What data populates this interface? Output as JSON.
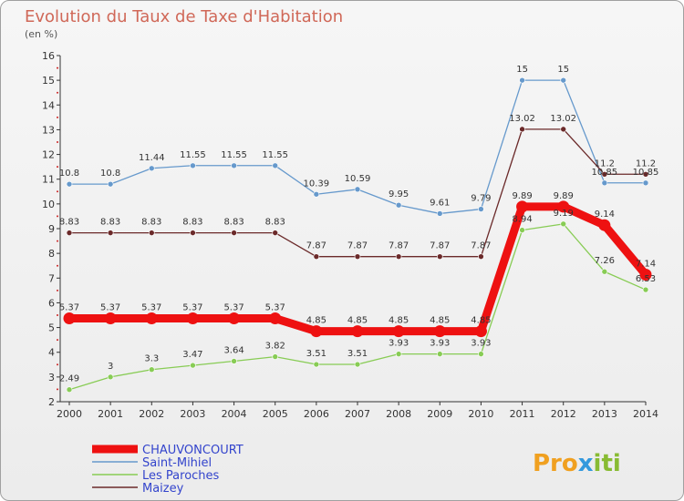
{
  "chart_data": {
    "type": "line",
    "title": "Evolution du Taux de Taxe d'Habitation",
    "subtitle": "(en %)",
    "x": [
      "2000",
      "2001",
      "2002",
      "2003",
      "2004",
      "2005",
      "2006",
      "2007",
      "2008",
      "2009",
      "2010",
      "2011",
      "2012",
      "2013",
      "2014"
    ],
    "ylim": [
      2,
      16
    ],
    "yticks": [
      "2",
      "3",
      "4",
      "5",
      "6",
      "7",
      "8",
      "9",
      "10",
      "11",
      "12",
      "13",
      "14",
      "15",
      "16"
    ],
    "grid": false,
    "legend_position": "bottom-left",
    "series": [
      {
        "name": "CHAUVONCOURT",
        "color": "#ee1111",
        "values": [
          5.37,
          5.37,
          5.37,
          5.37,
          5.37,
          5.37,
          4.85,
          4.85,
          4.85,
          4.85,
          4.85,
          9.89,
          9.89,
          9.14,
          7.14
        ]
      },
      {
        "name": "Saint-Mihiel",
        "color": "#6699cc",
        "values": [
          10.8,
          10.8,
          11.44,
          11.55,
          11.55,
          11.55,
          10.39,
          10.59,
          9.95,
          9.61,
          9.79,
          15,
          15,
          10.85,
          10.85
        ]
      },
      {
        "name": "Les Paroches",
        "color": "#88cc55",
        "values": [
          2.49,
          3,
          3.3,
          3.47,
          3.64,
          3.82,
          3.51,
          3.51,
          3.93,
          3.93,
          3.93,
          8.94,
          9.19,
          7.26,
          6.53
        ]
      },
      {
        "name": "Maizey",
        "color": "#6b2a2a",
        "values": [
          8.83,
          8.83,
          8.83,
          8.83,
          8.83,
          8.83,
          7.87,
          7.87,
          7.87,
          7.87,
          7.87,
          13.02,
          13.02,
          11.2,
          11.2
        ]
      }
    ],
    "labels": [
      [
        "5.37",
        "5.37",
        "5.37",
        "5.37",
        "5.37",
        "5.37",
        "4.85",
        "4.85",
        "4.85",
        "4.85",
        "4.85",
        "9.89",
        "9.89",
        "9.14",
        "7.14"
      ],
      [
        "10.8",
        "10.8",
        "11.44",
        "11.55",
        "11.55",
        "11.55",
        "10.39",
        "10.59",
        "9.95",
        "9.61",
        "9.79",
        "15",
        "15",
        "10.85",
        "10.85"
      ],
      [
        "2.49",
        "3",
        "3.3",
        "3.47",
        "3.64",
        "3.82",
        "3.51",
        "3.51",
        "3.93",
        "3.93",
        "3.93",
        "8.94",
        "9.19",
        "7.26",
        "6.53"
      ],
      [
        "8.83",
        "8.83",
        "8.83",
        "8.83",
        "8.83",
        "8.83",
        "7.87",
        "7.87",
        "7.87",
        "7.87",
        "7.87",
        "13.02",
        "13.02",
        "11.2",
        "11.2"
      ]
    ]
  },
  "logo": {
    "part1": "Pro",
    "x_letter": "x",
    "part2": "iti"
  }
}
